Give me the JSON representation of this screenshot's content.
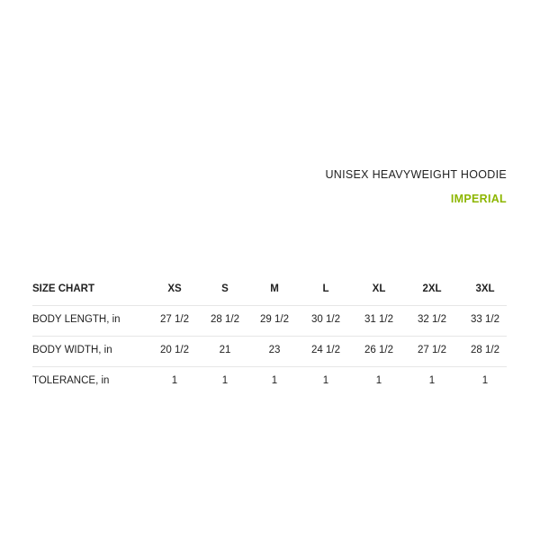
{
  "title": "UNISEX HEAVYWEIGHT HOODIE",
  "unit_system": "IMPERIAL",
  "accent_color": "#8db600",
  "table": {
    "header": [
      "SIZE CHART",
      "XS",
      "S",
      "M",
      "L",
      "XL",
      "2XL",
      "3XL"
    ],
    "rows": [
      [
        "BODY LENGTH, in",
        "27 1/2",
        "28 1/2",
        "29 1/2",
        "30 1/2",
        "31 1/2",
        "32 1/2",
        "33 1/2"
      ],
      [
        "BODY WIDTH, in",
        "20 1/2",
        "21",
        "23",
        "24 1/2",
        "26 1/2",
        "27 1/2",
        "28 1/2"
      ],
      [
        "TOLERANCE, in",
        "1",
        "1",
        "1",
        "1",
        "1",
        "1",
        "1"
      ]
    ]
  }
}
